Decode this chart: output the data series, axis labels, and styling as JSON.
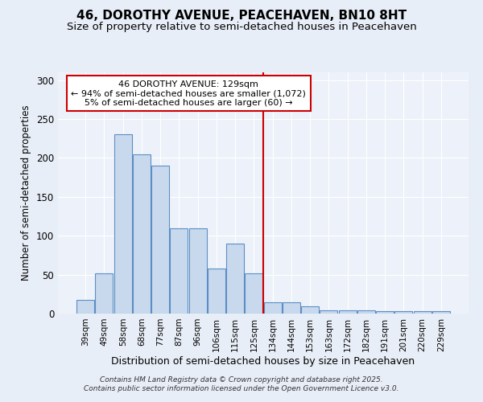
{
  "title": "46, DOROTHY AVENUE, PEACEHAVEN, BN10 8HT",
  "subtitle": "Size of property relative to semi-detached houses in Peacehaven",
  "xlabel": "Distribution of semi-detached houses by size in Peacehaven",
  "ylabel": "Number of semi-detached properties",
  "categories": [
    "39sqm",
    "49sqm",
    "58sqm",
    "68sqm",
    "77sqm",
    "87sqm",
    "96sqm",
    "106sqm",
    "115sqm",
    "125sqm",
    "134sqm",
    "144sqm",
    "153sqm",
    "163sqm",
    "172sqm",
    "182sqm",
    "191sqm",
    "201sqm",
    "220sqm",
    "229sqm"
  ],
  "values": [
    18,
    52,
    230,
    205,
    190,
    110,
    110,
    58,
    90,
    52,
    14,
    14,
    9,
    4,
    4,
    4,
    3,
    3,
    3,
    3
  ],
  "bar_color": "#c8d9ee",
  "bar_edge_color": "#5b8ec4",
  "red_line_index": 9,
  "red_line_color": "#cc0000",
  "annotation_line1": "46 DOROTHY AVENUE: 129sqm",
  "annotation_line2": "← 94% of semi-detached houses are smaller (1,072)",
  "annotation_line3": "5% of semi-detached houses are larger (60) →",
  "annotation_box_color": "#ffffff",
  "annotation_box_edge": "#cc0000",
  "ylim": [
    0,
    310
  ],
  "yticks": [
    0,
    50,
    100,
    150,
    200,
    250,
    300
  ],
  "background_color": "#e8eef7",
  "plot_background_color": "#edf2fa",
  "footer_line1": "Contains HM Land Registry data © Crown copyright and database right 2025.",
  "footer_line2": "Contains public sector information licensed under the Open Government Licence v3.0.",
  "title_fontsize": 11,
  "subtitle_fontsize": 9.5,
  "xlabel_fontsize": 9,
  "ylabel_fontsize": 8.5,
  "annotation_fontsize": 8
}
